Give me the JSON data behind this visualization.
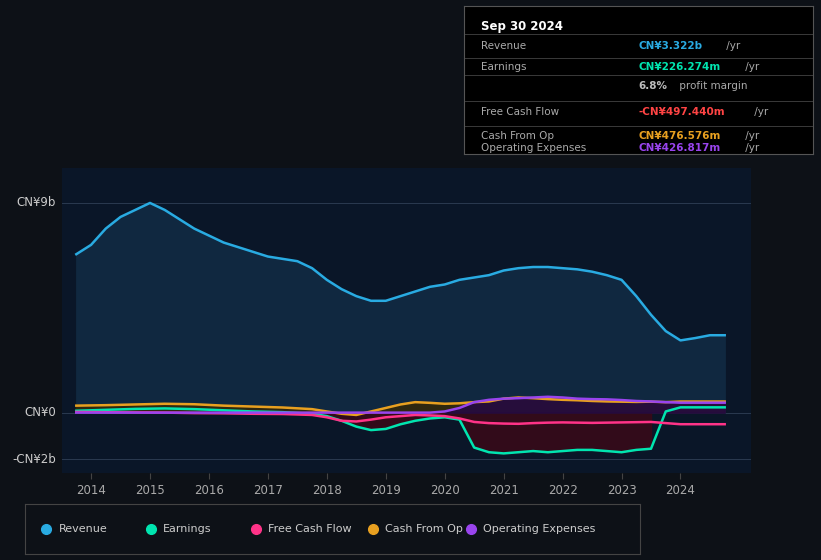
{
  "bg_color": "#0d1117",
  "plot_bg_color": "#0a1628",
  "grid_color": "#2a3a50",
  "ylabel_top": "CN¥9b",
  "ylabel_zero": "CN¥0",
  "ylabel_bottom": "-CN¥2b",
  "x_ticks": [
    2014,
    2015,
    2016,
    2017,
    2018,
    2019,
    2020,
    2021,
    2022,
    2023,
    2024
  ],
  "ylim_min": -2600000000,
  "ylim_max": 10500000000,
  "xlim_min": 2013.5,
  "xlim_max": 2025.2,
  "title_box_date": "Sep 30 2024",
  "revenue_x": [
    2013.75,
    2014.0,
    2014.25,
    2014.5,
    2014.75,
    2015.0,
    2015.25,
    2015.5,
    2015.75,
    2016.0,
    2016.25,
    2016.5,
    2016.75,
    2017.0,
    2017.25,
    2017.5,
    2017.75,
    2018.0,
    2018.25,
    2018.5,
    2018.75,
    2019.0,
    2019.25,
    2019.5,
    2019.75,
    2020.0,
    2020.25,
    2020.5,
    2020.75,
    2021.0,
    2021.25,
    2021.5,
    2021.75,
    2022.0,
    2022.25,
    2022.5,
    2022.75,
    2023.0,
    2023.25,
    2023.5,
    2023.75,
    2024.0,
    2024.25,
    2024.5,
    2024.75
  ],
  "revenue_y": [
    6800000000,
    7200000000,
    7900000000,
    8400000000,
    8700000000,
    9000000000,
    8700000000,
    8300000000,
    7900000000,
    7600000000,
    7300000000,
    7100000000,
    6900000000,
    6700000000,
    6600000000,
    6500000000,
    6200000000,
    5700000000,
    5300000000,
    5000000000,
    4800000000,
    4800000000,
    5000000000,
    5200000000,
    5400000000,
    5500000000,
    5700000000,
    5800000000,
    5900000000,
    6100000000,
    6200000000,
    6250000000,
    6250000000,
    6200000000,
    6150000000,
    6050000000,
    5900000000,
    5700000000,
    5000000000,
    4200000000,
    3500000000,
    3100000000,
    3200000000,
    3322000000,
    3322000000
  ],
  "earnings_x": [
    2013.75,
    2014.25,
    2014.75,
    2015.25,
    2015.75,
    2016.25,
    2016.75,
    2017.25,
    2017.75,
    2018.0,
    2018.25,
    2018.5,
    2018.75,
    2019.0,
    2019.25,
    2019.5,
    2019.75,
    2020.0,
    2020.25,
    2020.5,
    2020.75,
    2021.0,
    2021.25,
    2021.5,
    2021.75,
    2022.0,
    2022.25,
    2022.5,
    2022.75,
    2023.0,
    2023.25,
    2023.5,
    2023.75,
    2024.0,
    2024.25,
    2024.5,
    2024.75
  ],
  "earnings_y": [
    80000000,
    120000000,
    160000000,
    180000000,
    150000000,
    100000000,
    50000000,
    20000000,
    -50000000,
    -150000000,
    -350000000,
    -600000000,
    -750000000,
    -700000000,
    -500000000,
    -350000000,
    -250000000,
    -200000000,
    -300000000,
    -1500000000,
    -1700000000,
    -1750000000,
    -1700000000,
    -1650000000,
    -1700000000,
    -1650000000,
    -1600000000,
    -1600000000,
    -1650000000,
    -1700000000,
    -1600000000,
    -1550000000,
    50000000,
    226274000,
    226274000,
    226274000,
    226274000
  ],
  "fcf_x": [
    2013.75,
    2014.25,
    2014.75,
    2015.25,
    2015.75,
    2016.25,
    2016.75,
    2017.25,
    2017.75,
    2018.0,
    2018.25,
    2018.5,
    2018.75,
    2019.0,
    2019.25,
    2019.5,
    2019.75,
    2020.0,
    2020.25,
    2020.5,
    2020.75,
    2021.0,
    2021.25,
    2021.5,
    2021.75,
    2022.0,
    2022.25,
    2022.5,
    2022.75,
    2023.0,
    2023.25,
    2023.5,
    2023.75,
    2024.0,
    2024.25,
    2024.5,
    2024.75
  ],
  "fcf_y": [
    30000000,
    20000000,
    10000000,
    0,
    -20000000,
    -30000000,
    -50000000,
    -60000000,
    -100000000,
    -200000000,
    -350000000,
    -380000000,
    -300000000,
    -200000000,
    -150000000,
    -100000000,
    -120000000,
    -150000000,
    -250000000,
    -400000000,
    -450000000,
    -470000000,
    -480000000,
    -450000000,
    -430000000,
    -420000000,
    -430000000,
    -440000000,
    -430000000,
    -420000000,
    -410000000,
    -400000000,
    -450000000,
    -497440000,
    -497440000,
    -497440000,
    -497440000
  ],
  "cfo_x": [
    2013.75,
    2014.25,
    2014.75,
    2015.25,
    2015.75,
    2016.25,
    2016.75,
    2017.25,
    2017.75,
    2018.0,
    2018.25,
    2018.5,
    2018.75,
    2019.0,
    2019.25,
    2019.5,
    2019.75,
    2020.0,
    2020.25,
    2020.5,
    2020.75,
    2021.0,
    2021.25,
    2021.5,
    2021.75,
    2022.0,
    2022.25,
    2022.5,
    2022.75,
    2023.0,
    2023.25,
    2023.5,
    2023.75,
    2024.0,
    2024.25,
    2024.5,
    2024.75
  ],
  "cfo_y": [
    300000000,
    320000000,
    350000000,
    380000000,
    360000000,
    300000000,
    260000000,
    220000000,
    150000000,
    50000000,
    -50000000,
    -100000000,
    50000000,
    200000000,
    350000000,
    450000000,
    420000000,
    380000000,
    400000000,
    450000000,
    480000000,
    600000000,
    650000000,
    620000000,
    580000000,
    550000000,
    530000000,
    500000000,
    480000000,
    470000000,
    460000000,
    470000000,
    450000000,
    476576000,
    476576000,
    476576000,
    476576000
  ],
  "opex_x": [
    2013.75,
    2014.25,
    2014.75,
    2015.25,
    2015.75,
    2016.25,
    2016.75,
    2017.25,
    2017.75,
    2018.0,
    2018.25,
    2018.5,
    2018.75,
    2019.0,
    2019.25,
    2019.5,
    2019.75,
    2020.0,
    2020.25,
    2020.5,
    2020.75,
    2021.0,
    2021.25,
    2021.5,
    2021.75,
    2022.0,
    2022.25,
    2022.5,
    2022.75,
    2023.0,
    2023.25,
    2023.5,
    2023.75,
    2024.0,
    2024.25,
    2024.5,
    2024.75
  ],
  "opex_y": [
    0,
    0,
    0,
    0,
    0,
    0,
    0,
    0,
    0,
    0,
    0,
    0,
    0,
    0,
    0,
    0,
    0,
    50000000,
    200000000,
    450000000,
    550000000,
    600000000,
    620000000,
    650000000,
    680000000,
    650000000,
    600000000,
    580000000,
    570000000,
    540000000,
    500000000,
    480000000,
    450000000,
    426817000,
    426817000,
    426817000,
    426817000
  ],
  "rev_color": "#29abe2",
  "earn_color": "#00e5b0",
  "fcf_color": "#ff3388",
  "cfo_color": "#e8a020",
  "opex_color": "#9944ee",
  "rev_fill": "#102840",
  "earn_fill_neg": "#3a0a18",
  "cfo_fill": "#3a2800",
  "opex_fill": "#250a40",
  "legend_items": [
    {
      "label": "Revenue",
      "color": "#29abe2"
    },
    {
      "label": "Earnings",
      "color": "#00e5b0"
    },
    {
      "label": "Free Cash Flow",
      "color": "#ff3388"
    },
    {
      "label": "Cash From Op",
      "color": "#e8a020"
    },
    {
      "label": "Operating Expenses",
      "color": "#9944ee"
    }
  ]
}
